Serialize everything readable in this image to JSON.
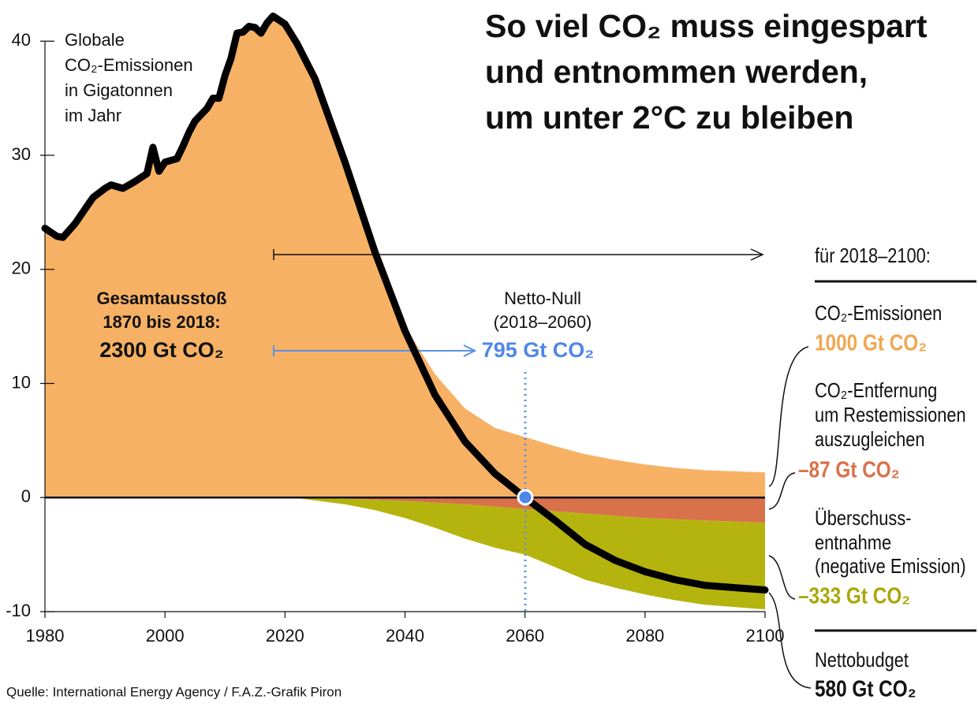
{
  "chart_data": {
    "type": "area",
    "title": [
      "So viel CO₂ muss eingespart",
      "und entnommen werden,",
      "um unter 2°C zu bleiben"
    ],
    "y_label": [
      "Globale",
      "CO₂-Emissionen",
      "in Gigatonnen",
      "im Jahr"
    ],
    "x": [
      1980,
      1982,
      1983,
      1985,
      1988,
      1990,
      1991,
      1993,
      1995,
      1997,
      1998,
      1999,
      2000,
      2002,
      2003,
      2004,
      2005,
      2007,
      2008,
      2009,
      2010,
      2011,
      2012,
      2013,
      2014,
      2015,
      2016,
      2017,
      2018,
      2020,
      2022,
      2025,
      2030,
      2035,
      2040,
      2045,
      2050,
      2055,
      2060,
      2065,
      2070,
      2075,
      2080,
      2085,
      2090,
      2095,
      2100
    ],
    "series": [
      {
        "kind": "area",
        "color": "#f7b164",
        "values": [
          23.6,
          22.9,
          22.8,
          24.0,
          26.3,
          27.1,
          27.4,
          27.1,
          27.7,
          28.4,
          30.7,
          28.6,
          29.4,
          29.7,
          30.8,
          32.0,
          33.0,
          34.1,
          35.0,
          35.0,
          37.0,
          38.5,
          40.7,
          40.8,
          41.3,
          41.2,
          40.7,
          41.6,
          42.2,
          41.5,
          39.8,
          36.7,
          29.4,
          21.5,
          15.0,
          10.8,
          7.8,
          6.1,
          5.3,
          4.5,
          3.8,
          3.3,
          2.9,
          2.6,
          2.4,
          2.3,
          2.2
        ]
      },
      {
        "kind": "area",
        "color": "#d9714a",
        "values": [
          null,
          null,
          null,
          null,
          null,
          null,
          null,
          null,
          null,
          null,
          null,
          null,
          null,
          null,
          null,
          null,
          null,
          null,
          null,
          null,
          null,
          null,
          null,
          null,
          null,
          null,
          null,
          null,
          null,
          0,
          0,
          -0.05,
          -0.1,
          -0.2,
          -0.3,
          -0.45,
          -0.6,
          -0.8,
          -1.0,
          -1.2,
          -1.4,
          -1.6,
          -1.8,
          -1.9,
          -2.0,
          -2.1,
          -2.2
        ]
      },
      {
        "kind": "area",
        "color": "#b5b40f",
        "values": [
          null,
          null,
          null,
          null,
          null,
          null,
          null,
          null,
          null,
          null,
          null,
          null,
          null,
          null,
          null,
          null,
          null,
          null,
          null,
          null,
          null,
          null,
          null,
          null,
          null,
          null,
          null,
          null,
          null,
          0,
          -0.05,
          -0.2,
          -0.5,
          -0.9,
          -1.5,
          -2.2,
          -3.0,
          -3.6,
          -4.0,
          -4.9,
          -5.8,
          -6.3,
          -6.7,
          -7.1,
          -7.4,
          -7.5,
          -7.6
        ]
      },
      {
        "kind": "line",
        "color": "#000000",
        "values": [
          23.6,
          22.9,
          22.8,
          24.0,
          26.3,
          27.1,
          27.4,
          27.1,
          27.7,
          28.4,
          30.7,
          28.6,
          29.4,
          29.7,
          30.8,
          32.0,
          33.0,
          34.1,
          35.0,
          35.0,
          37.0,
          38.5,
          40.7,
          40.8,
          41.3,
          41.2,
          40.7,
          41.6,
          42.2,
          41.5,
          39.8,
          36.7,
          29.4,
          21.5,
          14.6,
          9.0,
          4.9,
          2.1,
          0,
          -2.0,
          -4.1,
          -5.5,
          -6.5,
          -7.2,
          -7.7,
          -7.9,
          -8.1
        ]
      }
    ],
    "xlim": [
      1980,
      2100
    ],
    "xticks": [
      1980,
      2000,
      2020,
      2040,
      2060,
      2080,
      2100
    ],
    "ylim": [
      -10,
      43
    ],
    "yticks": [
      -10,
      0,
      10,
      20,
      30,
      40
    ],
    "annotations": {
      "total": [
        "Gesamtausstoß",
        "1870 bis 2018:",
        "2300 Gt CO₂"
      ],
      "net_zero": [
        "Netto-Null",
        "(2018–2060)",
        "795 Gt CO₂"
      ],
      "period": "für 2018–2100:",
      "emissions": [
        "CO₂-Emissionen",
        "1000 Gt CO₂"
      ],
      "removal": [
        "CO₂-Entfernung",
        "um Restemissionen",
        "auszugleichen",
        "–87 Gt CO₂"
      ],
      "excess": [
        "Überschuss-",
        "entnahme",
        "(negative Emission)",
        "–333 Gt CO₂"
      ],
      "budget": [
        "Nettobudget",
        "580 Gt CO₂"
      ]
    },
    "source": "Quelle: International Energy Agency / F.A.Z.-Grafik Piron"
  }
}
